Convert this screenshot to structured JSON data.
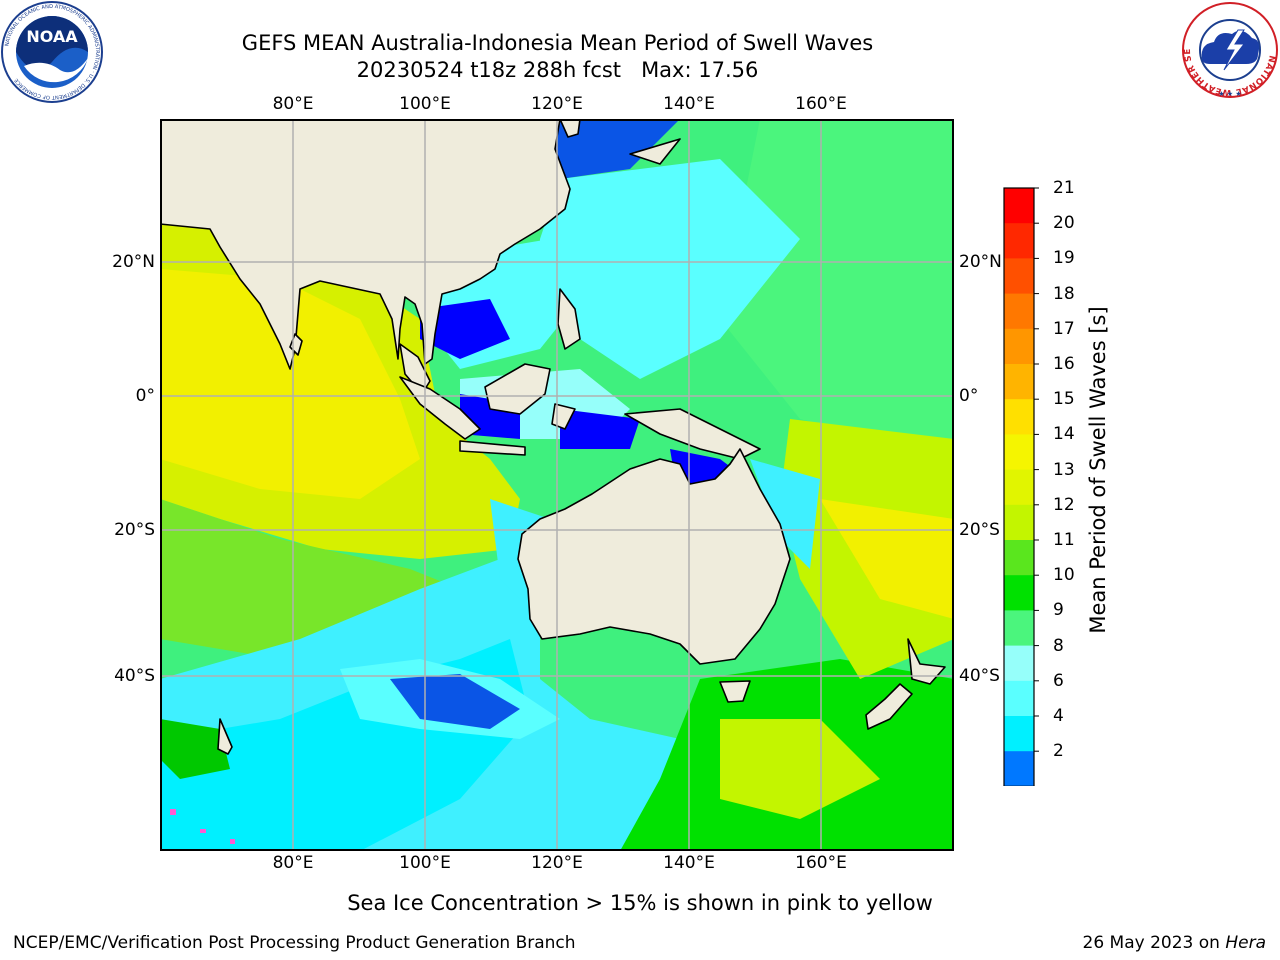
{
  "header": {
    "title_line1": "GEFS MEAN Australia-Indonesia Mean Period of Swell Waves",
    "title_line2": "20230524 t18z 288h fcst   Max: 17.56"
  },
  "map": {
    "lon_ticks": [
      "80°E",
      "100°E",
      "120°E",
      "140°E",
      "160°E"
    ],
    "lat_ticks": [
      "20°N",
      "0°",
      "20°S",
      "40°S"
    ],
    "colors": {
      "land": "#efecdc",
      "coast": "#000000",
      "grid": "#b0b0b0"
    }
  },
  "colorbar": {
    "label": "Mean Period of Swell Waves [s]",
    "ticks": [
      "21",
      "20",
      "19",
      "18",
      "17",
      "16",
      "15",
      "14",
      "13",
      "12",
      "11",
      "10",
      "9",
      "8",
      "6",
      "4",
      "2"
    ],
    "colors": [
      "#ff0000",
      "#ff2800",
      "#ff5000",
      "#ff7800",
      "#ff9600",
      "#ffb400",
      "#ffe000",
      "#f5f500",
      "#e1f500",
      "#c3f500",
      "#5ae61e",
      "#00e100",
      "#4bf57d",
      "#96fffa",
      "#5affff",
      "#00f0ff",
      "#0078ff",
      "#0000ff"
    ]
  },
  "note": "Sea Ice Concentration > 15% is shown in pink to yellow",
  "footer": {
    "left": "NCEP/EMC/Verification Post Processing Product Generation Branch",
    "right_date": "26 May 2023 on ",
    "right_machine": "Hera"
  },
  "logos": {
    "left_text": "NOAA",
    "right_ring": "NATIONAL WEATHER SERVICE"
  }
}
